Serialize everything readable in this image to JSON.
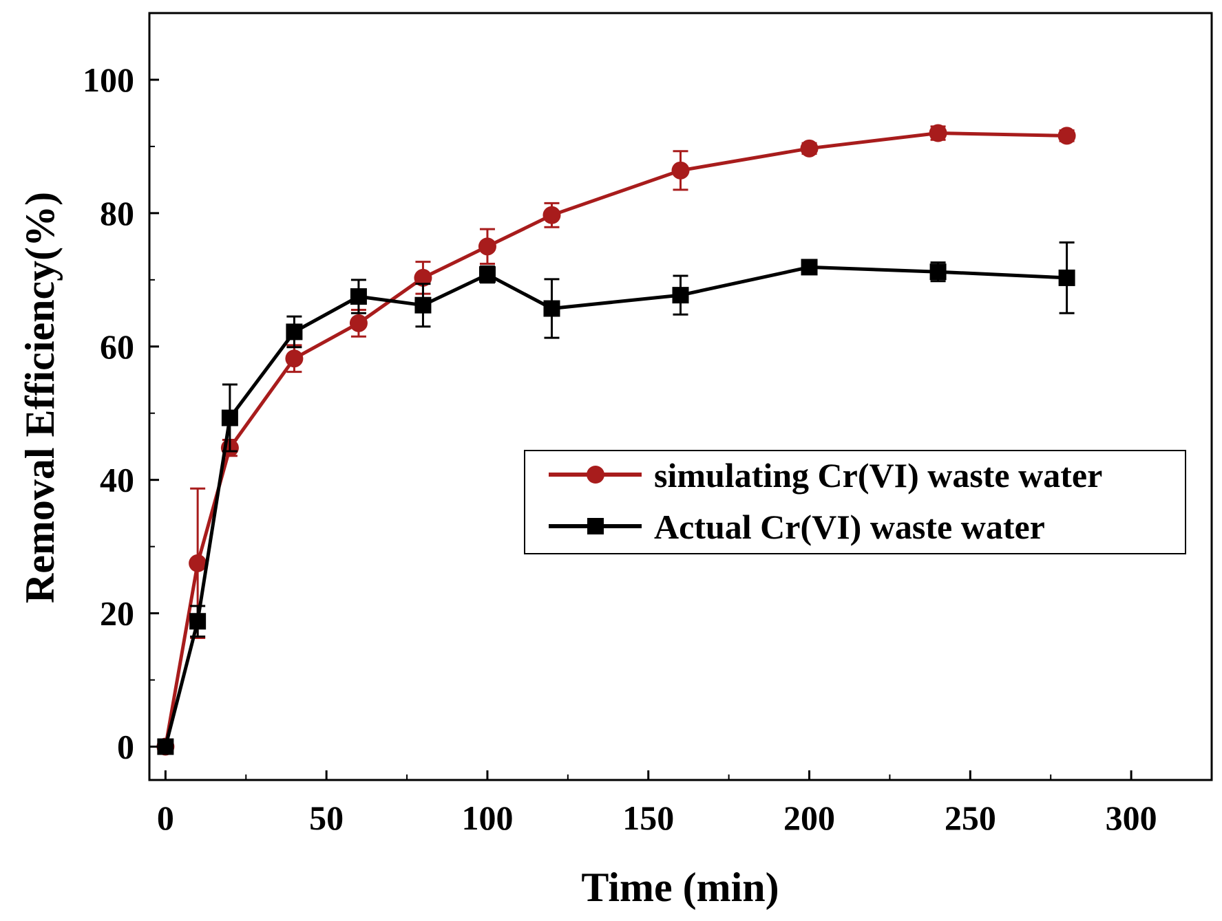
{
  "chart_data": {
    "type": "line",
    "title": "",
    "xlabel": "Time (min)",
    "ylabel": "Removal  Efficiency(%)",
    "xlim": [
      -5,
      325
    ],
    "ylim": [
      -5,
      110
    ],
    "xticks": [
      0,
      50,
      100,
      150,
      200,
      250,
      300
    ],
    "xtick_labels": [
      "0",
      "50",
      "100",
      "150",
      "200",
      "250",
      "300"
    ],
    "yticks": [
      0,
      20,
      40,
      60,
      80,
      100
    ],
    "ytick_labels": [
      "0",
      "20",
      "40",
      "60",
      "80",
      "100"
    ],
    "x_minor_step": 25,
    "y_minor_step": 10,
    "grid": false,
    "legend_position": "center-right",
    "series": [
      {
        "name": "simulating Cr(VI) waste water",
        "color": "#a81c1c",
        "marker": "circle",
        "x": [
          0,
          10,
          20,
          40,
          60,
          80,
          100,
          120,
          160,
          200,
          240,
          280
        ],
        "values": [
          0,
          27.5,
          44.8,
          58.2,
          63.5,
          70.3,
          75.0,
          79.7,
          86.4,
          89.7,
          92.0,
          91.6
        ],
        "errors": [
          0.5,
          11.2,
          1.2,
          2.0,
          2.0,
          2.4,
          2.6,
          1.8,
          2.9,
          0.8,
          1.0,
          0.8
        ]
      },
      {
        "name": "Actual Cr(VI) waste water",
        "color": "#000000",
        "marker": "square",
        "x": [
          0,
          10,
          20,
          40,
          60,
          80,
          100,
          120,
          160,
          200,
          240,
          280
        ],
        "values": [
          0,
          18.8,
          49.3,
          62.2,
          67.5,
          66.2,
          70.8,
          65.7,
          67.7,
          71.9,
          71.2,
          70.3
        ],
        "errors": [
          0.5,
          2.3,
          5.0,
          2.3,
          2.5,
          3.2,
          1.2,
          4.4,
          2.9,
          0.9,
          1.4,
          5.3
        ]
      }
    ]
  }
}
